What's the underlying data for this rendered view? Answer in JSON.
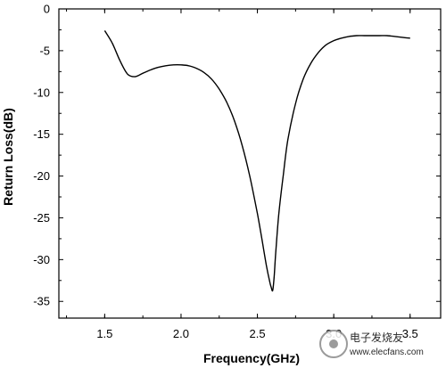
{
  "chart_data": {
    "type": "line",
    "title": "",
    "xlabel": "Frequency(GHz)",
    "ylabel": "Return Loss(dB)",
    "xlim": [
      1.2,
      3.7
    ],
    "ylim": [
      -37,
      0
    ],
    "x_ticks": [
      1.5,
      2.0,
      2.5,
      3.0,
      3.5
    ],
    "x_tick_labels": [
      "1.5",
      "2.0",
      "2.5",
      "3.0",
      "3.5"
    ],
    "y_ticks": [
      0,
      -5,
      -10,
      -15,
      -20,
      -25,
      -30,
      -35
    ],
    "y_tick_labels": [
      "0",
      "-5",
      "-10",
      "-15",
      "-20",
      "-25",
      "-30",
      "-35"
    ],
    "grid": false,
    "legend": "none",
    "series": [
      {
        "color": "#000000",
        "x": [
          1.5,
          1.55,
          1.6,
          1.65,
          1.7,
          1.75,
          1.8,
          1.85,
          1.9,
          1.95,
          2.0,
          2.05,
          2.1,
          2.15,
          2.2,
          2.25,
          2.3,
          2.35,
          2.4,
          2.45,
          2.5,
          2.53,
          2.56,
          2.58,
          2.59,
          2.6,
          2.61,
          2.62,
          2.64,
          2.67,
          2.7,
          2.75,
          2.8,
          2.85,
          2.9,
          2.95,
          3.0,
          3.05,
          3.1,
          3.15,
          3.2,
          3.25,
          3.3,
          3.35,
          3.4,
          3.45,
          3.5
        ],
        "y": [
          -2.6,
          -4.1,
          -6.2,
          -7.8,
          -8.1,
          -7.7,
          -7.3,
          -7.0,
          -6.8,
          -6.7,
          -6.7,
          -6.8,
          -7.1,
          -7.6,
          -8.4,
          -9.6,
          -11.2,
          -13.4,
          -16.3,
          -20.0,
          -24.5,
          -27.6,
          -30.8,
          -32.6,
          -33.3,
          -33.7,
          -32.0,
          -29.2,
          -24.6,
          -19.8,
          -15.6,
          -11.3,
          -8.4,
          -6.5,
          -5.2,
          -4.3,
          -3.8,
          -3.5,
          -3.3,
          -3.2,
          -3.2,
          -3.2,
          -3.2,
          -3.2,
          -3.3,
          -3.4,
          -3.5
        ]
      }
    ]
  },
  "watermark": {
    "text": "电子发烧友",
    "url": "www.elecfans.com"
  }
}
